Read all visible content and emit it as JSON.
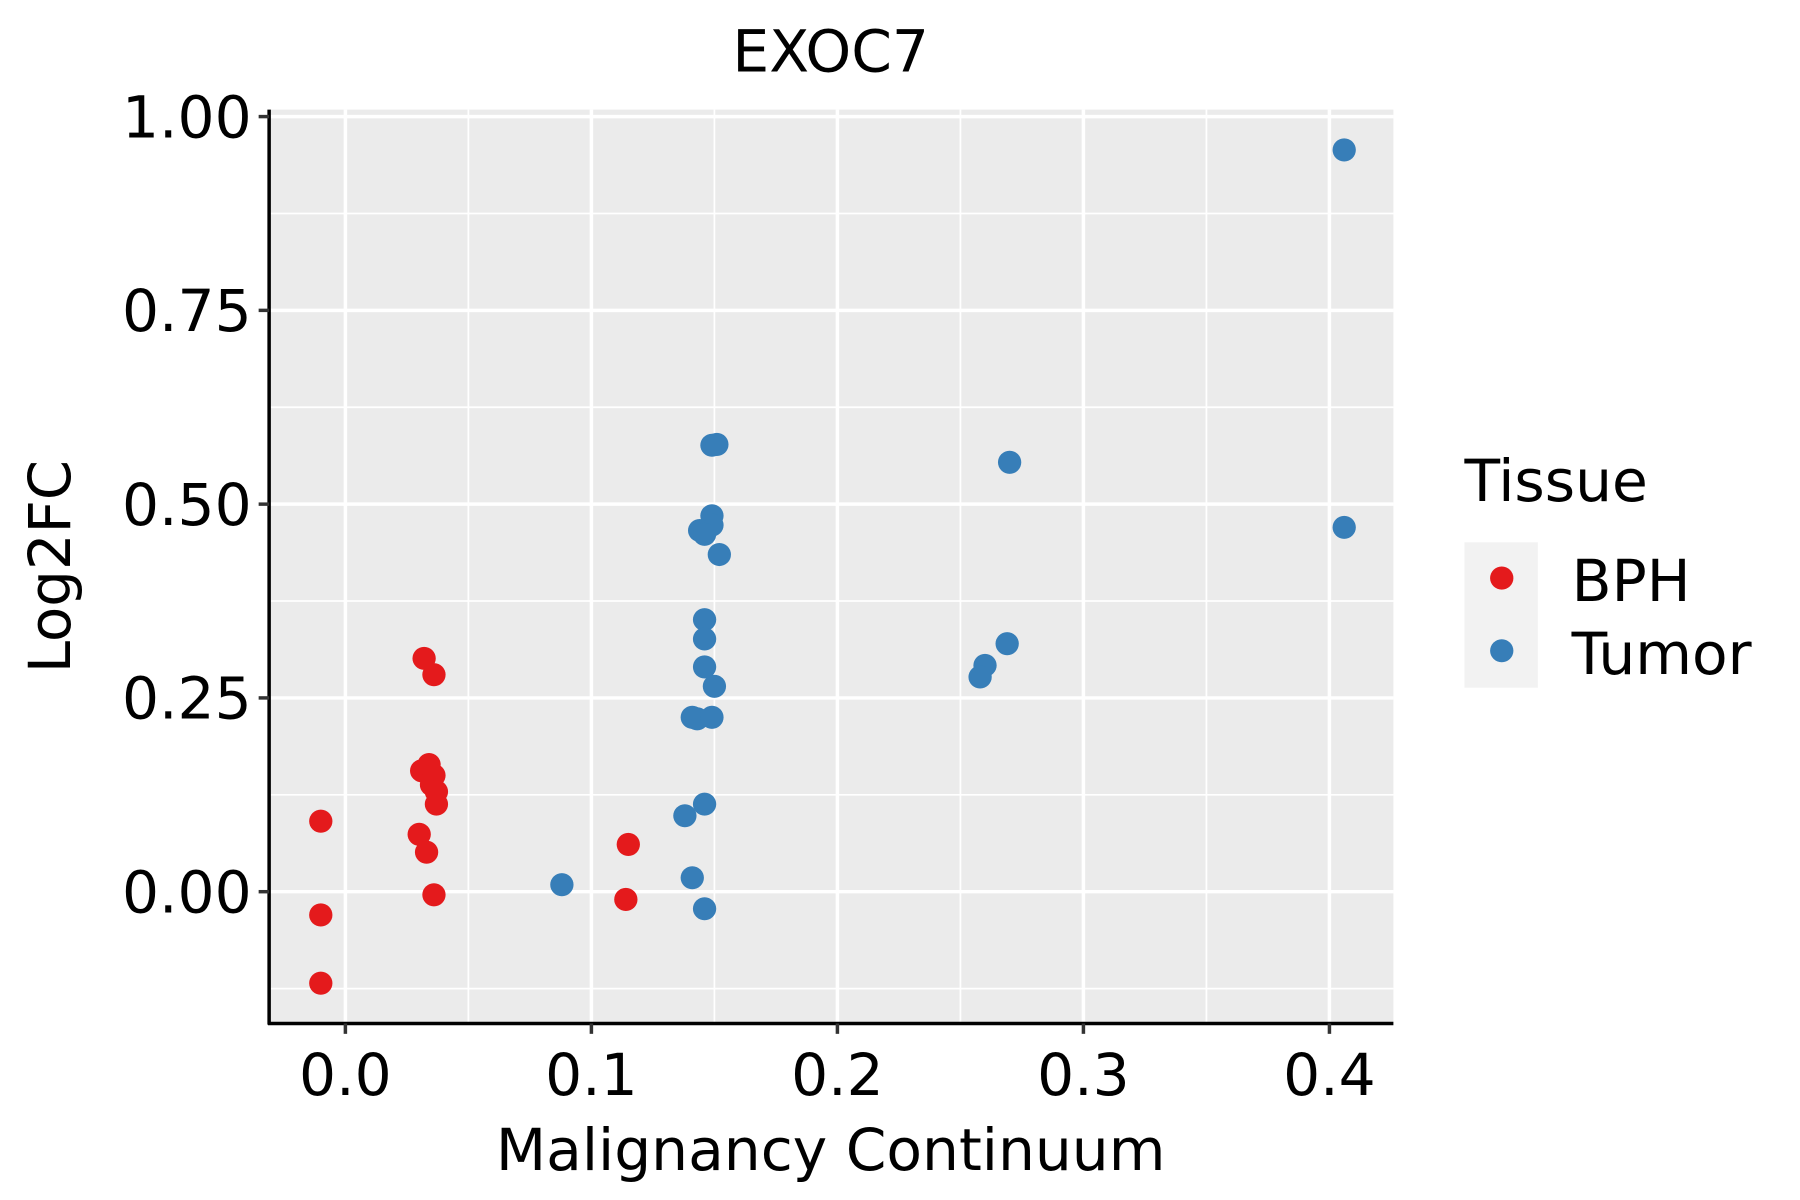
{
  "chart_data": {
    "type": "scatter",
    "title": "EXOC7",
    "xlabel": "Malignancy Continuum",
    "ylabel": "Log2FC",
    "xlim": [
      -0.031,
      0.426
    ],
    "ylim": [
      -0.17,
      1.009
    ],
    "xticks": [
      0.0,
      0.1,
      0.2,
      0.3,
      0.4
    ],
    "xtick_labels": [
      "0.0",
      "0.1",
      "0.2",
      "0.3",
      "0.4"
    ],
    "yticks": [
      0.0,
      0.25,
      0.5,
      0.75,
      1.0
    ],
    "ytick_labels": [
      "0.00",
      "0.25",
      "0.50",
      "0.75",
      "1.00"
    ],
    "grid": true,
    "legend": {
      "title": "Tissue",
      "placement": "right"
    },
    "series": [
      {
        "name": "BPH",
        "color": "#E41A1C",
        "points": [
          [
            -0.01,
            0.091
          ],
          [
            -0.01,
            -0.03
          ],
          [
            -0.01,
            -0.118
          ],
          [
            0.032,
            0.301
          ],
          [
            0.036,
            0.28
          ],
          [
            0.031,
            0.156
          ],
          [
            0.034,
            0.164
          ],
          [
            0.036,
            0.15
          ],
          [
            0.035,
            0.138
          ],
          [
            0.037,
            0.129
          ],
          [
            0.037,
            0.113
          ],
          [
            0.03,
            0.074
          ],
          [
            0.033,
            0.051
          ],
          [
            0.036,
            -0.004
          ],
          [
            0.115,
            0.061
          ],
          [
            0.114,
            -0.01
          ]
        ]
      },
      {
        "name": "Tumor",
        "color": "#377EB8",
        "points": [
          [
            0.406,
            0.957
          ],
          [
            0.406,
            0.47
          ],
          [
            0.27,
            0.554
          ],
          [
            0.269,
            0.32
          ],
          [
            0.26,
            0.292
          ],
          [
            0.258,
            0.277
          ],
          [
            0.149,
            0.576
          ],
          [
            0.151,
            0.577
          ],
          [
            0.149,
            0.485
          ],
          [
            0.149,
            0.473
          ],
          [
            0.144,
            0.466
          ],
          [
            0.146,
            0.461
          ],
          [
            0.152,
            0.435
          ],
          [
            0.146,
            0.351
          ],
          [
            0.146,
            0.326
          ],
          [
            0.146,
            0.29
          ],
          [
            0.15,
            0.265
          ],
          [
            0.141,
            0.225
          ],
          [
            0.143,
            0.223
          ],
          [
            0.149,
            0.225
          ],
          [
            0.146,
            0.113
          ],
          [
            0.138,
            0.098
          ],
          [
            0.141,
            0.018
          ],
          [
            0.146,
            -0.022
          ],
          [
            0.088,
            0.009
          ]
        ]
      }
    ]
  }
}
